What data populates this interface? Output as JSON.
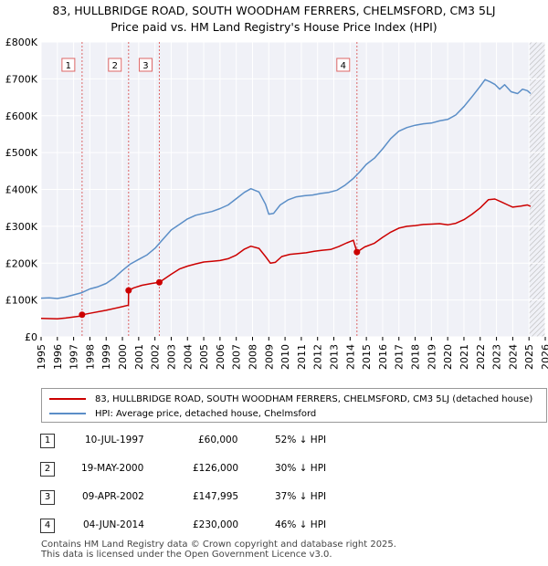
{
  "title_line1": "83, HULLBRIDGE ROAD, SOUTH WOODHAM FERRERS, CHELMSFORD, CM3 5LJ",
  "title_line2": "Price paid vs. HM Land Registry's House Price Index (HPI)",
  "chart_data": {
    "type": "line",
    "title": "83, HULLBRIDGE ROAD, SOUTH WOODHAM FERRERS, CHELMSFORD, CM3 5LJ — Price paid vs. HM Land Registry's House Price Index (HPI)",
    "xlabel": "",
    "ylabel": "",
    "xlim": [
      1995,
      2026
    ],
    "ylim": [
      0,
      800000
    ],
    "y_ticks": [
      {
        "value": 0,
        "label": "£0"
      },
      {
        "value": 100000,
        "label": "£100K"
      },
      {
        "value": 200000,
        "label": "£200K"
      },
      {
        "value": 300000,
        "label": "£300K"
      },
      {
        "value": 400000,
        "label": "£400K"
      },
      {
        "value": 500000,
        "label": "£500K"
      },
      {
        "value": 600000,
        "label": "£600K"
      },
      {
        "value": 700000,
        "label": "£700K"
      },
      {
        "value": 800000,
        "label": "£800K"
      }
    ],
    "x_ticks": [
      "1995",
      "1996",
      "1997",
      "1998",
      "1999",
      "2000",
      "2001",
      "2002",
      "2003",
      "2004",
      "2005",
      "2006",
      "2007",
      "2008",
      "2009",
      "2010",
      "2011",
      "2012",
      "2013",
      "2014",
      "2015",
      "2016",
      "2017",
      "2018",
      "2019",
      "2020",
      "2021",
      "2022",
      "2023",
      "2024",
      "2025",
      "2026"
    ],
    "series": [
      {
        "name": "83, HULLBRIDGE ROAD, SOUTH WOODHAM FERRERS, CHELMSFORD, CM3 5LJ (detached house)",
        "color": "#cc0000",
        "points": [
          [
            1995.0,
            50000
          ],
          [
            1996.0,
            49000
          ],
          [
            1996.5,
            51000
          ],
          [
            1997.52,
            57000
          ],
          [
            1997.53,
            60000
          ],
          [
            1998.0,
            64000
          ],
          [
            1999.0,
            72000
          ],
          [
            2000.0,
            82000
          ],
          [
            2000.37,
            86000
          ],
          [
            2000.38,
            126000
          ],
          [
            2000.7,
            133000
          ],
          [
            2001.2,
            140000
          ],
          [
            2001.8,
            145000
          ],
          [
            2002.27,
            147995
          ],
          [
            2003.0,
            170000
          ],
          [
            2003.5,
            184000
          ],
          [
            2004.0,
            192000
          ],
          [
            2004.5,
            198000
          ],
          [
            2005.0,
            203000
          ],
          [
            2005.5,
            205000
          ],
          [
            2006.0,
            207000
          ],
          [
            2006.5,
            212000
          ],
          [
            2007.0,
            222000
          ],
          [
            2007.5,
            238000
          ],
          [
            2007.9,
            246000
          ],
          [
            2008.4,
            240000
          ],
          [
            2008.8,
            218000
          ],
          [
            2009.1,
            200000
          ],
          [
            2009.4,
            202000
          ],
          [
            2009.8,
            218000
          ],
          [
            2010.3,
            224000
          ],
          [
            2010.8,
            226000
          ],
          [
            2011.3,
            228000
          ],
          [
            2011.8,
            232000
          ],
          [
            2012.3,
            235000
          ],
          [
            2012.8,
            237000
          ],
          [
            2013.3,
            245000
          ],
          [
            2013.8,
            255000
          ],
          [
            2014.2,
            262000
          ],
          [
            2014.42,
            230000
          ],
          [
            2014.9,
            244000
          ],
          [
            2015.5,
            254000
          ],
          [
            2016.0,
            270000
          ],
          [
            2016.5,
            284000
          ],
          [
            2017.0,
            295000
          ],
          [
            2017.5,
            300000
          ],
          [
            2018.0,
            302000
          ],
          [
            2018.5,
            305000
          ],
          [
            2019.0,
            306000
          ],
          [
            2019.5,
            307000
          ],
          [
            2020.0,
            304000
          ],
          [
            2020.5,
            308000
          ],
          [
            2021.0,
            318000
          ],
          [
            2021.5,
            333000
          ],
          [
            2022.0,
            350000
          ],
          [
            2022.5,
            372000
          ],
          [
            2022.9,
            374000
          ],
          [
            2023.3,
            366000
          ],
          [
            2023.7,
            358000
          ],
          [
            2024.0,
            352000
          ],
          [
            2024.5,
            355000
          ],
          [
            2024.9,
            358000
          ],
          [
            2025.1,
            354000
          ]
        ]
      },
      {
        "name": "HPI: Average price, detached house, Chelmsford",
        "color": "#5b8ec7",
        "points": [
          [
            1995.0,
            105000
          ],
          [
            1995.5,
            106000
          ],
          [
            1996.0,
            104000
          ],
          [
            1996.5,
            108000
          ],
          [
            1997.0,
            114000
          ],
          [
            1997.5,
            120000
          ],
          [
            1998.0,
            130000
          ],
          [
            1998.5,
            136000
          ],
          [
            1999.0,
            145000
          ],
          [
            1999.5,
            160000
          ],
          [
            2000.0,
            180000
          ],
          [
            2000.5,
            198000
          ],
          [
            2001.0,
            210000
          ],
          [
            2001.5,
            222000
          ],
          [
            2002.0,
            240000
          ],
          [
            2002.5,
            265000
          ],
          [
            2003.0,
            290000
          ],
          [
            2003.5,
            305000
          ],
          [
            2004.0,
            320000
          ],
          [
            2004.5,
            330000
          ],
          [
            2005.0,
            335000
          ],
          [
            2005.5,
            340000
          ],
          [
            2006.0,
            348000
          ],
          [
            2006.5,
            358000
          ],
          [
            2007.0,
            375000
          ],
          [
            2007.5,
            392000
          ],
          [
            2007.9,
            402000
          ],
          [
            2008.4,
            393000
          ],
          [
            2008.8,
            360000
          ],
          [
            2009.0,
            333000
          ],
          [
            2009.3,
            335000
          ],
          [
            2009.7,
            358000
          ],
          [
            2010.2,
            372000
          ],
          [
            2010.7,
            380000
          ],
          [
            2011.2,
            383000
          ],
          [
            2011.7,
            385000
          ],
          [
            2012.2,
            389000
          ],
          [
            2012.7,
            392000
          ],
          [
            2013.2,
            398000
          ],
          [
            2013.7,
            412000
          ],
          [
            2014.2,
            430000
          ],
          [
            2014.6,
            448000
          ],
          [
            2015.0,
            468000
          ],
          [
            2015.5,
            485000
          ],
          [
            2016.0,
            510000
          ],
          [
            2016.5,
            538000
          ],
          [
            2017.0,
            558000
          ],
          [
            2017.5,
            568000
          ],
          [
            2018.0,
            574000
          ],
          [
            2018.5,
            578000
          ],
          [
            2019.0,
            580000
          ],
          [
            2019.5,
            586000
          ],
          [
            2020.0,
            590000
          ],
          [
            2020.5,
            602000
          ],
          [
            2021.0,
            625000
          ],
          [
            2021.5,
            652000
          ],
          [
            2022.0,
            680000
          ],
          [
            2022.3,
            698000
          ],
          [
            2022.6,
            692000
          ],
          [
            2022.9,
            685000
          ],
          [
            2023.2,
            672000
          ],
          [
            2023.5,
            684000
          ],
          [
            2023.9,
            665000
          ],
          [
            2024.3,
            660000
          ],
          [
            2024.6,
            672000
          ],
          [
            2024.9,
            668000
          ],
          [
            2025.1,
            660000
          ]
        ]
      }
    ],
    "sales": [
      {
        "id": "1",
        "date": "10-JUL-1997",
        "price": "£60,000",
        "hpi": "52% ↓ HPI",
        "x": 1997.52,
        "value": 60000
      },
      {
        "id": "2",
        "date": "19-MAY-2000",
        "price": "£126,000",
        "hpi": "30% ↓ HPI",
        "x": 2000.38,
        "value": 126000
      },
      {
        "id": "3",
        "date": "09-APR-2002",
        "price": "£147,995",
        "hpi": "37% ↓ HPI",
        "x": 2002.27,
        "value": 147995
      },
      {
        "id": "4",
        "date": "04-JUN-2014",
        "price": "£230,000",
        "hpi": "46% ↓ HPI",
        "x": 2014.42,
        "value": 230000
      }
    ],
    "forecast_start": 2025.0
  },
  "legend": {
    "property_label": "83, HULLBRIDGE ROAD, SOUTH WOODHAM FERRERS, CHELMSFORD, CM3 5LJ (detached house)",
    "property_color": "#cc0000",
    "hpi_label": "HPI: Average price, detached house, Chelmsford",
    "hpi_color": "#5b8ec7"
  },
  "footer_line1": "Contains HM Land Registry data © Crown copyright and database right 2025.",
  "footer_line2": "This data is licensed under the Open Government Licence v3.0."
}
